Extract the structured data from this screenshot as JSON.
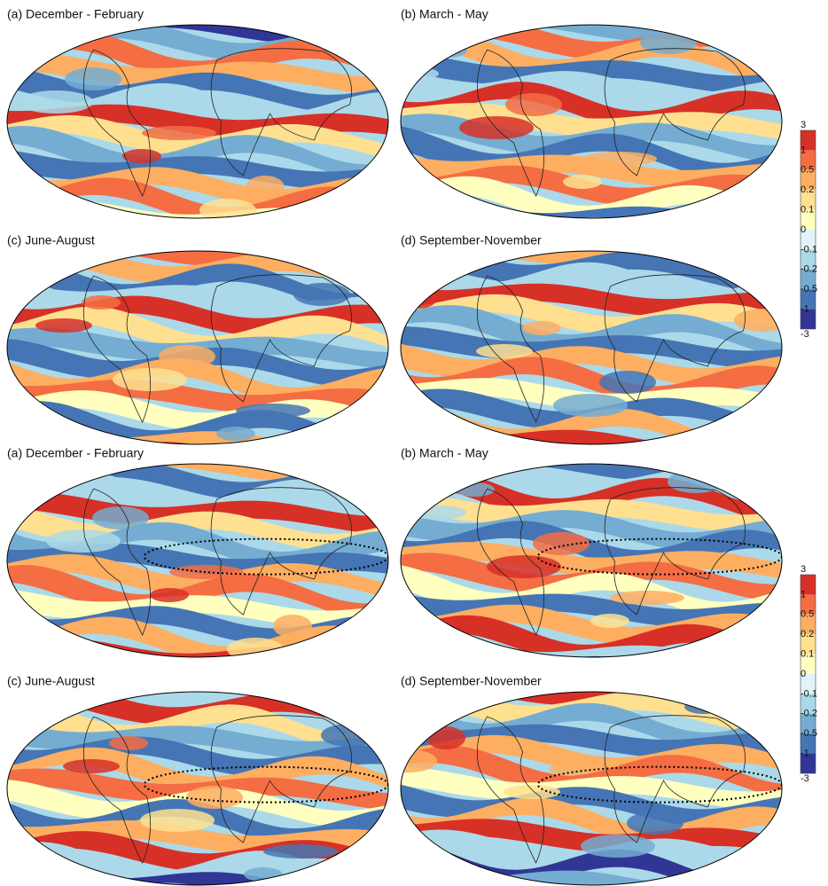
{
  "figures": [
    {
      "panels": [
        {
          "title": "(a) December - February"
        },
        {
          "title": "(b) March - May"
        },
        {
          "title": "(c) June-August"
        },
        {
          "title": "(d) September-November"
        }
      ],
      "colorbar": {
        "labels": [
          "3",
          "1",
          "0.5",
          "0.2",
          "0.1",
          "0",
          "-0.1",
          "-0.2",
          "-0.5",
          "-1",
          "-3"
        ],
        "colors": [
          "#d73027",
          "#f46d43",
          "#fdae61",
          "#fee090",
          "#ffffbf",
          "#e0f3f8",
          "#abd9e9",
          "#74add1",
          "#4575b4",
          "#313695"
        ]
      }
    },
    {
      "panels": [
        {
          "title": "(a) December - February"
        },
        {
          "title": "(b) March - May"
        },
        {
          "title": "(c) June-August"
        },
        {
          "title": "(d) September-November"
        }
      ],
      "colorbar": {
        "labels": [
          "3",
          "1",
          "0.5",
          "0.2",
          "0.1",
          "0",
          "-0.1",
          "-0.2",
          "-0.5",
          "-1",
          "-3"
        ],
        "colors": [
          "#d73027",
          "#f46d43",
          "#fdae61",
          "#fee090",
          "#ffffbf",
          "#e0f3f8",
          "#abd9e9",
          "#74add1",
          "#4575b4",
          "#313695"
        ]
      }
    }
  ]
}
